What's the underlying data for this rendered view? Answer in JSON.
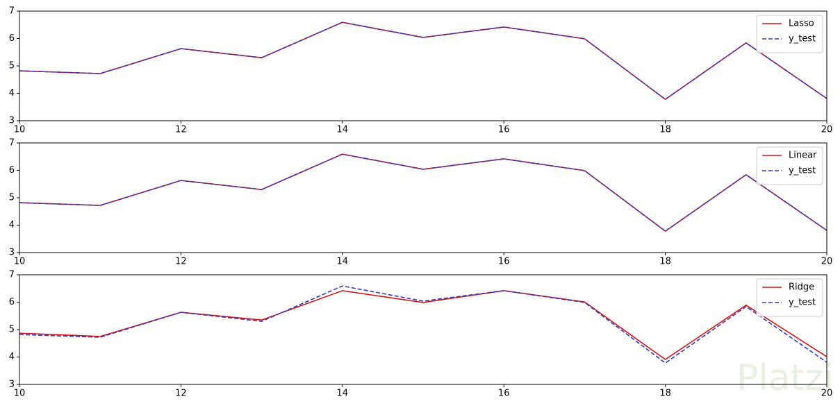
{
  "watermark": "Platzi",
  "chart_data": [
    {
      "type": "line",
      "x": [
        10,
        11,
        12,
        13,
        14,
        15,
        16,
        17,
        18,
        19,
        20
      ],
      "series": [
        {
          "name": "Lasso",
          "color": "#d01515",
          "linestyle": "solid",
          "values": [
            4.82,
            4.72,
            5.63,
            5.3,
            6.59,
            6.04,
            6.42,
            5.99,
            3.78,
            5.84,
            3.81
          ]
        },
        {
          "name": "y_test",
          "color": "#3535c0",
          "linestyle": "dashed",
          "values": [
            4.82,
            4.72,
            5.63,
            5.3,
            6.59,
            6.04,
            6.42,
            5.99,
            3.78,
            5.84,
            3.81
          ]
        }
      ],
      "xlim": [
        10,
        20
      ],
      "ylim": [
        3,
        7
      ],
      "xticks": [
        10,
        12,
        14,
        16,
        18,
        20
      ],
      "yticks": [
        3,
        4,
        5,
        6,
        7
      ],
      "legend": "upper right"
    },
    {
      "type": "line",
      "x": [
        10,
        11,
        12,
        13,
        14,
        15,
        16,
        17,
        18,
        19,
        20
      ],
      "series": [
        {
          "name": "Linear",
          "color": "#d01515",
          "linestyle": "solid",
          "values": [
            4.82,
            4.72,
            5.63,
            5.3,
            6.59,
            6.04,
            6.42,
            5.99,
            3.78,
            5.84,
            3.81
          ]
        },
        {
          "name": "y_test",
          "color": "#3535c0",
          "linestyle": "dashed",
          "values": [
            4.82,
            4.72,
            5.63,
            5.3,
            6.59,
            6.04,
            6.42,
            5.99,
            3.78,
            5.84,
            3.81
          ]
        }
      ],
      "xlim": [
        10,
        20
      ],
      "ylim": [
        3,
        7
      ],
      "xticks": [
        10,
        12,
        14,
        16,
        18,
        20
      ],
      "yticks": [
        3,
        4,
        5,
        6,
        7
      ],
      "legend": "upper right"
    },
    {
      "type": "line",
      "x": [
        10,
        11,
        12,
        13,
        14,
        15,
        16,
        17,
        18,
        19,
        20
      ],
      "series": [
        {
          "name": "Ridge",
          "color": "#d01515",
          "linestyle": "solid",
          "values": [
            4.87,
            4.75,
            5.63,
            5.35,
            6.42,
            5.99,
            6.42,
            6.01,
            3.91,
            5.89,
            4.01
          ]
        },
        {
          "name": "y_test",
          "color": "#3535c0",
          "linestyle": "dashed",
          "values": [
            4.82,
            4.72,
            5.63,
            5.3,
            6.59,
            6.04,
            6.42,
            5.99,
            3.78,
            5.84,
            3.81
          ]
        }
      ],
      "xlim": [
        10,
        20
      ],
      "ylim": [
        3,
        7
      ],
      "xticks": [
        10,
        12,
        14,
        16,
        18,
        20
      ],
      "yticks": [
        3,
        4,
        5,
        6,
        7
      ],
      "legend": "upper right"
    }
  ]
}
